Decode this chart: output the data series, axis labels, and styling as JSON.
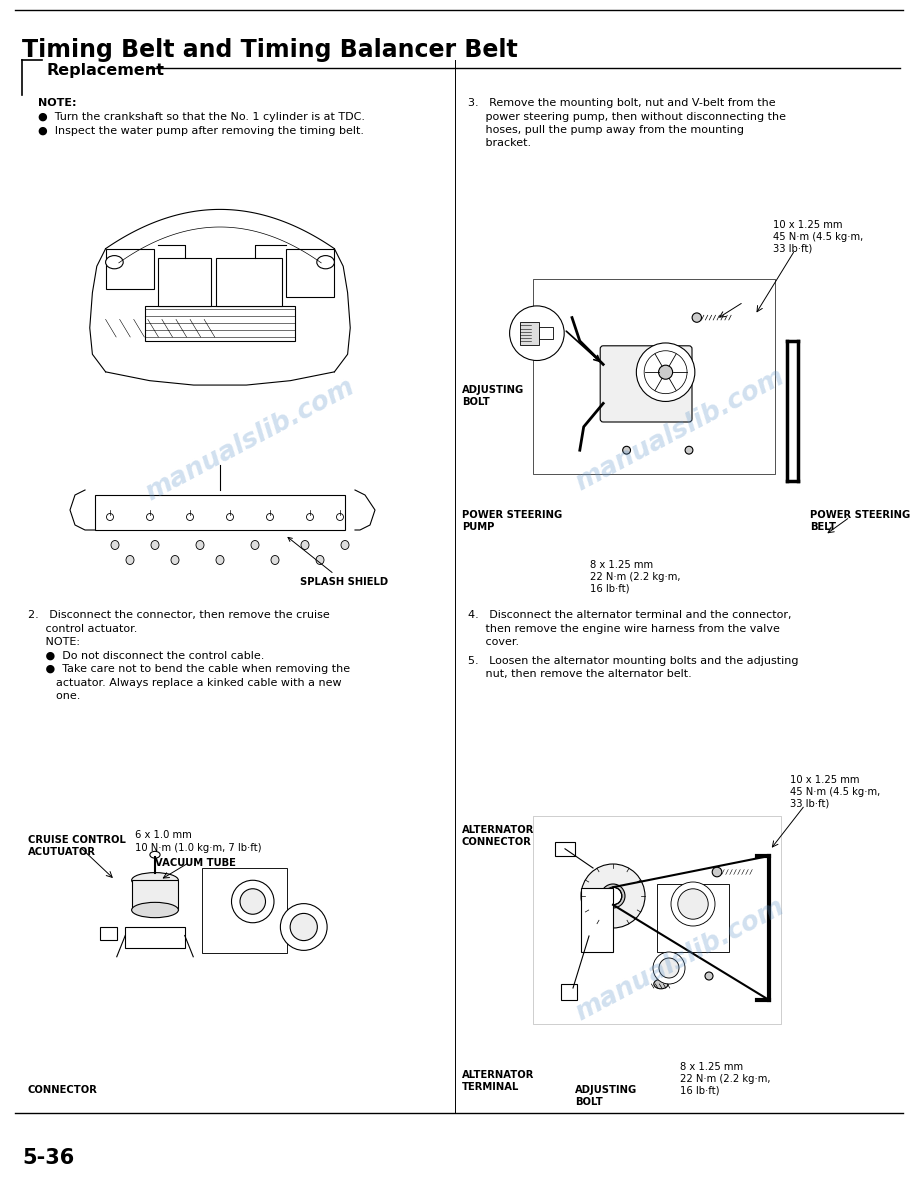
{
  "title": "Timing Belt and Timing Balancer Belt",
  "section_header": "Replacement",
  "page_number": "5-36",
  "bg": "#ffffff",
  "fg": "#000000",
  "note_header": "NOTE:",
  "note_line1": "Turn the crankshaft so that the No. 1 cylinder is at TDC.",
  "note_line2": "Inspect the water pump after removing the timing belt.",
  "step2_lines": [
    "2.   Disconnect the connector, then remove the cruise",
    "     control actuator.",
    "     NOTE:",
    "     ●  Do not disconnect the control cable.",
    "     ●  Take care not to bend the cable when removing the",
    "        actuator. Always replace a kinked cable with a new",
    "        one."
  ],
  "step3_lines": [
    "3.   Remove the mounting bolt, nut and V-belt from the",
    "     power steering pump, then without disconnecting the",
    "     hoses, pull the pump away from the mounting",
    "     bracket."
  ],
  "step4_lines": [
    "4.   Disconnect the alternator terminal and the connector,",
    "     then remove the engine wire harness from the valve",
    "     cover."
  ],
  "step5_lines": [
    "5.   Loosen the alternator mounting bolts and the adjusting",
    "     nut, then remove the alternator belt."
  ],
  "lbl_splash": "SPLASH SHIELD",
  "lbl_cruise_ctrl": "CRUISE CONTROL\nACUTUATOR",
  "lbl_6x10": "6 x 1.0 mm",
  "lbl_10nm": "10 N·m (1.0 kg·m, 7 lb·ft)",
  "lbl_vacuum": "VACUUM TUBE",
  "lbl_connector": "CONNECTOR",
  "lbl_10x125_top": "10 x 1.25 mm\n45 N·m (4.5 kg·m,\n33 lb·ft)",
  "lbl_adj_bolt": "ADJUSTING\nBOLT",
  "lbl_ps_pump": "POWER STEERING\nPUMP",
  "lbl_8x125": "8 x 1.25 mm\n22 N·m (2.2 kg·m,\n16 lb·ft)",
  "lbl_ps_belt": "POWER STEERING\nBELT",
  "lbl_10x125_bot": "10 x 1.25 mm\n45 N·m (4.5 kg·m,\n33 lb·ft)",
  "lbl_alt_conn": "ALTERNATOR\nCONNECTOR",
  "lbl_8x125_bot": "8 x 1.25 mm\n22 N·m (2.2 kg·m,\n16 lb·ft)",
  "lbl_alt_term": "ALTERNATOR\nTERMINAL",
  "lbl_adj_bolt_bot": "ADJUSTING\nBOLT",
  "wm_text": "manualslib.com",
  "wm_color": "#6699cc",
  "wm_alpha": 0.3
}
